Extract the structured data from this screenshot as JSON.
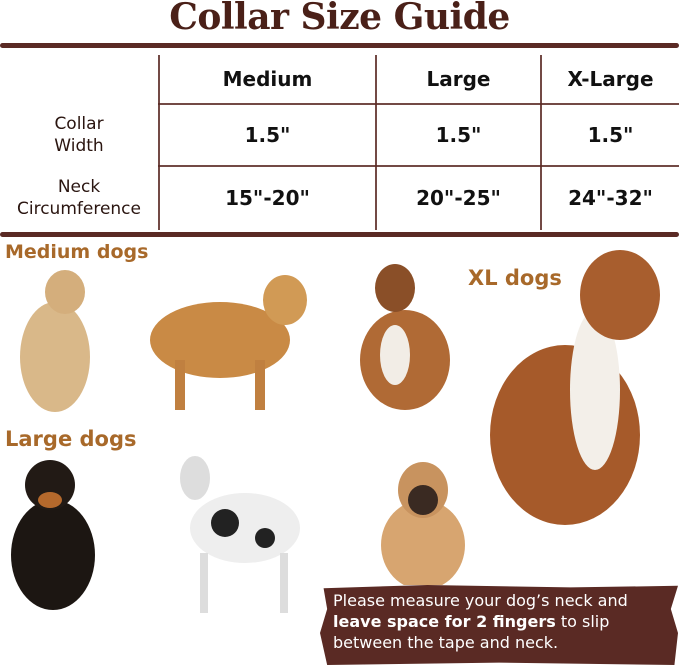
{
  "title": "Collar Size Guide",
  "table": {
    "columns": [
      "Medium",
      "Large",
      "X-Large"
    ],
    "rows": [
      {
        "label_line1": "Collar",
        "label_line2": "Width",
        "values": [
          "1.5\"",
          "1.5\"",
          "1.5\""
        ]
      },
      {
        "label_line1": "Neck",
        "label_line2": "Circumference",
        "values": [
          "15\"-20\"",
          "20\"-25\"",
          "24\"-32\""
        ]
      }
    ]
  },
  "categories": {
    "medium": "Medium dogs",
    "large": "Large dogs",
    "xl": "XL dogs"
  },
  "note": {
    "part1": "Please measure your dog’s neck and ",
    "bold": "leave space for 2 fingers",
    "part2": " to slip between the tape and neck."
  },
  "colors": {
    "brown": "#5a2a24",
    "accent": "#a8692a"
  }
}
